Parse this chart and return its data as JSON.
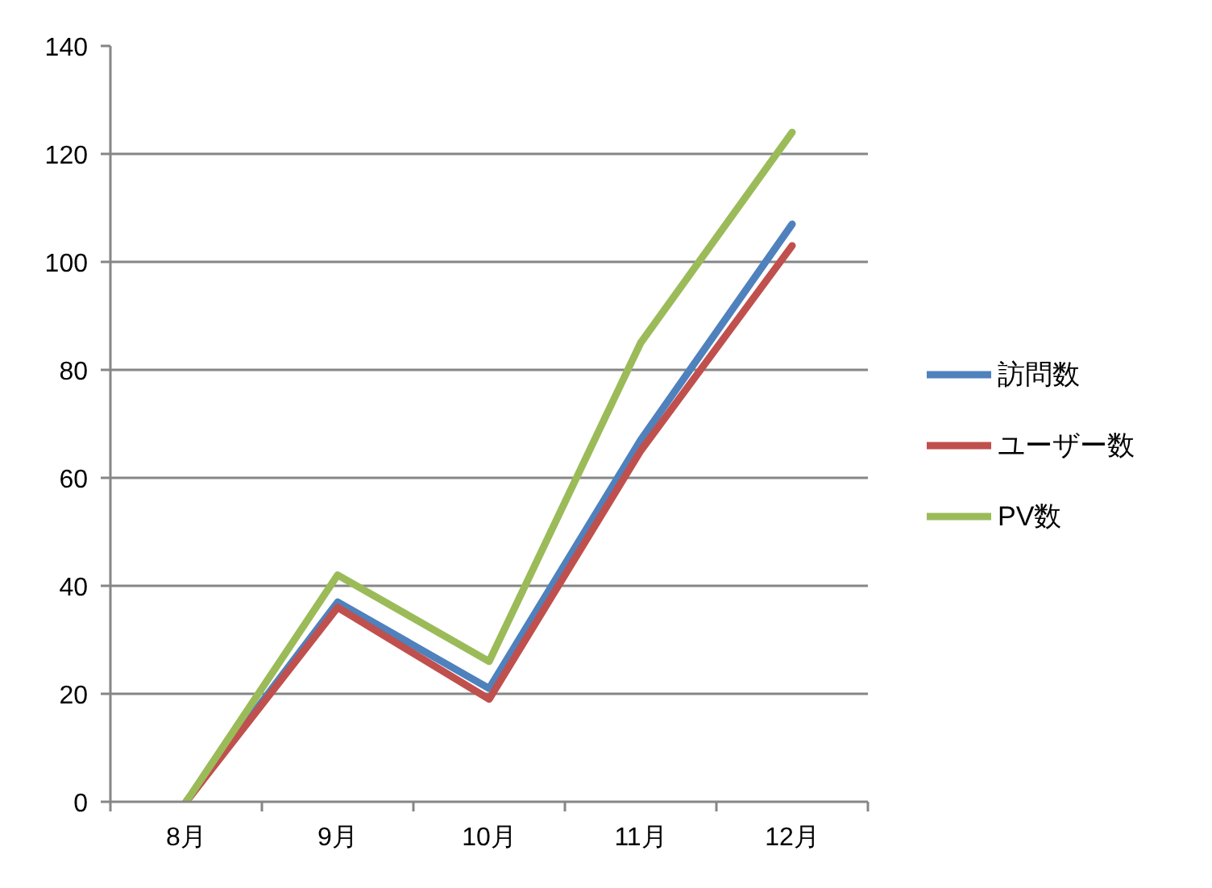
{
  "chart_data": {
    "type": "line",
    "categories": [
      "8月",
      "9月",
      "10月",
      "11月",
      "12月"
    ],
    "series": [
      {
        "name": "訪問数",
        "color": "#4f81bd",
        "values": [
          0,
          37,
          21,
          67,
          107
        ]
      },
      {
        "name": "ユーザー数",
        "color": "#c0504d",
        "values": [
          0,
          36,
          19,
          65,
          103
        ]
      },
      {
        "name": "PV数",
        "color": "#9bbb59",
        "values": [
          0,
          42,
          26,
          85,
          124
        ]
      }
    ],
    "ylim": [
      0,
      140
    ],
    "yticks": [
      0,
      20,
      40,
      60,
      80,
      100,
      120,
      140
    ],
    "grid": "y",
    "legend": "right"
  }
}
